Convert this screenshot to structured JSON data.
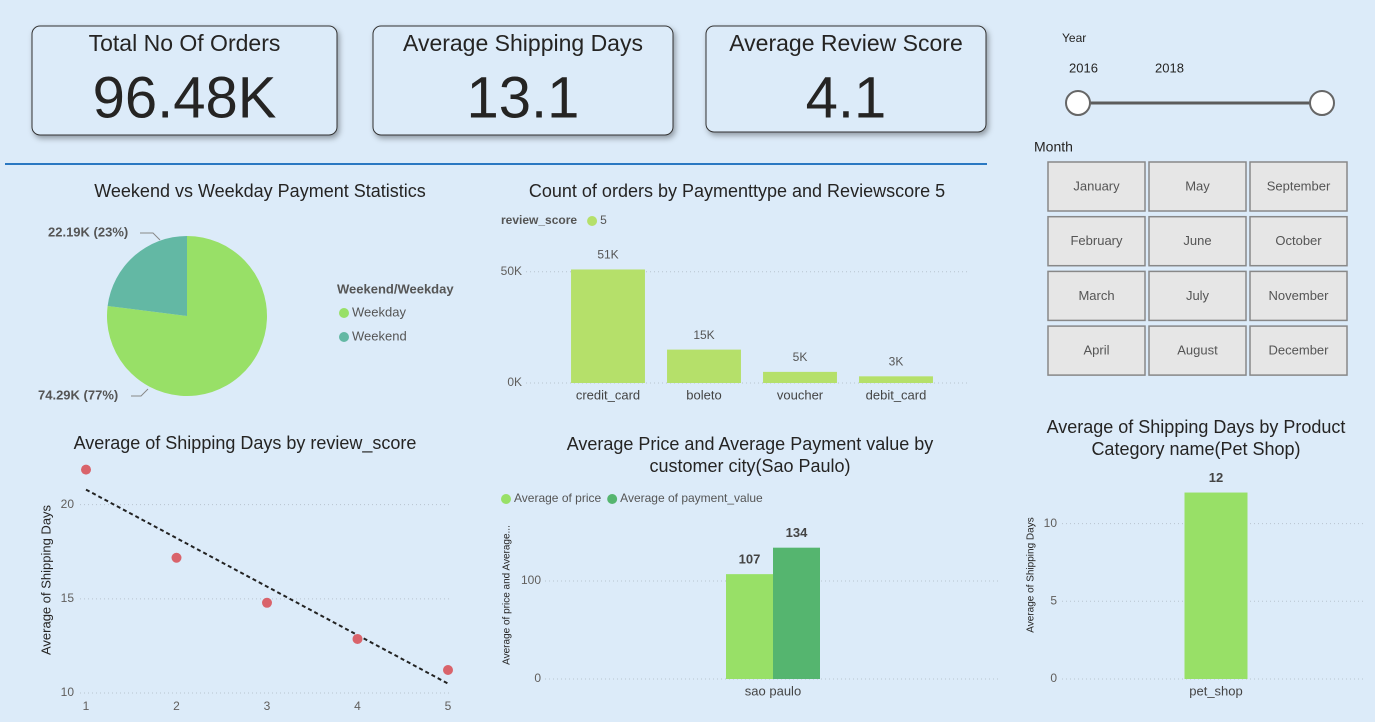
{
  "cards": [
    {
      "label": "Total No Of Orders",
      "value": "96.48K"
    },
    {
      "label": "Average Shipping Days",
      "value": "13.1"
    },
    {
      "label": "Average Review Score",
      "value": "4.1"
    }
  ],
  "year_slicer": {
    "title": "Year",
    "start": 2016,
    "end": 2018
  },
  "month_slicer": {
    "title": "Month",
    "months": [
      "January",
      "February",
      "March",
      "April",
      "May",
      "June",
      "July",
      "August",
      "September",
      "October",
      "November",
      "December"
    ]
  },
  "chart_data": [
    {
      "type": "pie",
      "title": "Weekend vs Weekday Payment Statistics",
      "legend_title": "Weekend/Weekday",
      "categories": [
        "Weekday",
        "Weekend"
      ],
      "values": [
        74290,
        22190
      ],
      "value_labels": [
        "74.29K (77%)",
        "22.19K (23%)"
      ],
      "colors": [
        "#98e067",
        "#63b8a4"
      ]
    },
    {
      "type": "bar",
      "title": "Count of orders by Paymenttype and Reviewscore 5",
      "legend_title": "review_score",
      "categories": [
        "credit_card",
        "boleto",
        "voucher",
        "debit_card"
      ],
      "series": [
        {
          "name": "5",
          "color": "#b5e06a",
          "values": [
            51000,
            15000,
            5000,
            3000
          ],
          "value_labels": [
            "51K",
            "15K",
            "5K",
            "3K"
          ]
        }
      ],
      "ylim": [
        0,
        57500
      ],
      "yticks": [
        {
          "value": 0,
          "label": "0K"
        },
        {
          "value": 50000,
          "label": "50K"
        }
      ],
      "grid": true
    },
    {
      "type": "scatter",
      "title": "Average of Shipping Days by review_score",
      "y_label": "Average of Shipping Days",
      "x": [
        1,
        2,
        3,
        4,
        5
      ],
      "values": [
        21.86,
        17.18,
        14.79,
        12.87,
        11.22
      ],
      "color": "#d9636b",
      "trend": {
        "x": [
          1,
          5
        ],
        "values": [
          20.8,
          10.5
        ]
      },
      "xlim": [
        1,
        5
      ],
      "ylim": [
        10,
        22
      ],
      "xticks": [
        1,
        2,
        3,
        4,
        5
      ],
      "yticks": [
        10,
        15,
        20
      ],
      "grid": true
    },
    {
      "type": "bar",
      "title": "Average Price and Average Payment value by customer city(Sao Paulo)",
      "y_label": "Average of price and Average...",
      "categories": [
        "sao paulo"
      ],
      "series": [
        {
          "name": "Average of price",
          "color": "#98e067",
          "values": [
            107
          ]
        },
        {
          "name": "Average of payment_value",
          "color": "#55b56f",
          "values": [
            134
          ]
        }
      ],
      "ylim": [
        0,
        150
      ],
      "yticks": [
        0,
        100
      ],
      "grid": true
    },
    {
      "type": "bar",
      "title": "Average of Shipping Days by Product Category name(Pet Shop)",
      "y_label": "Average of Shipping Days",
      "categories": [
        "pet_shop"
      ],
      "values": [
        12
      ],
      "color": "#98e067",
      "ylim": [
        0,
        13
      ],
      "yticks": [
        0,
        5,
        10
      ],
      "grid": true
    }
  ]
}
